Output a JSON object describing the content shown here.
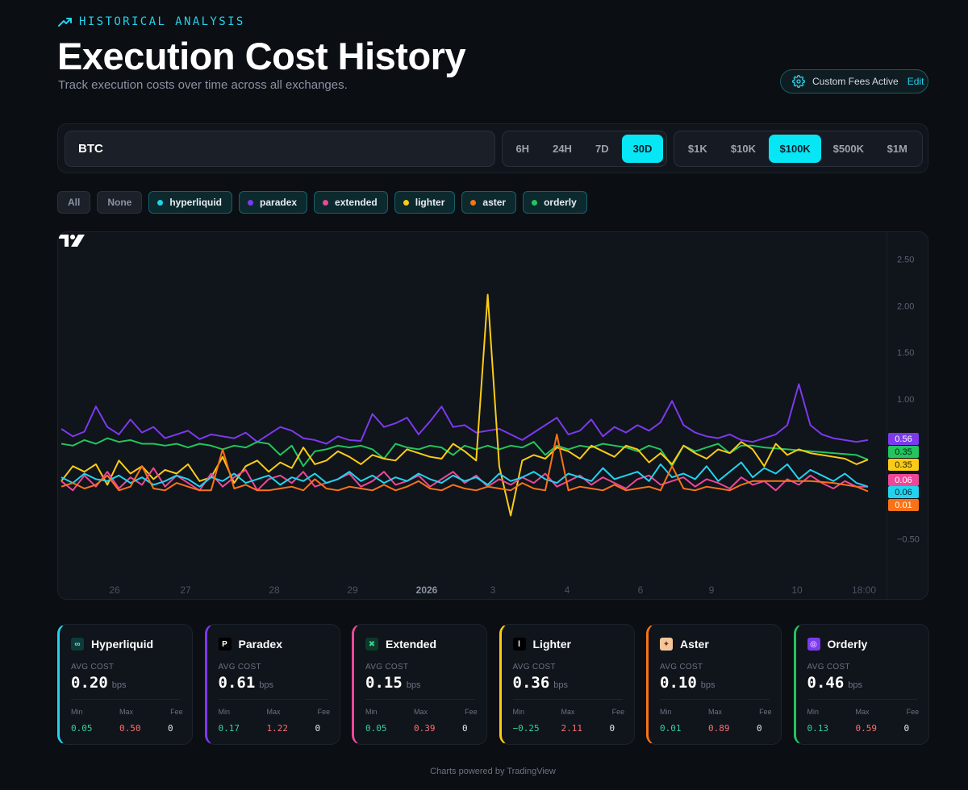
{
  "header": {
    "eyebrow": "HISTORICAL ANALYSIS",
    "title": "Execution Cost History",
    "subtitle": "Track execution costs over time across all exchanges.",
    "fees_label": "Custom Fees Active",
    "fees_edit": "Edit"
  },
  "controls": {
    "asset": "BTC",
    "time_ranges": [
      "6H",
      "24H",
      "7D",
      "30D"
    ],
    "time_active": "30D",
    "sizes": [
      "$1K",
      "$10K",
      "$100K",
      "$500K",
      "$1M"
    ],
    "size_active": "$100K"
  },
  "filters": {
    "all": "All",
    "none": "None",
    "exchanges": [
      {
        "name": "hyperliquid",
        "color": "#22d3ee"
      },
      {
        "name": "paradex",
        "color": "#7c3aed"
      },
      {
        "name": "extended",
        "color": "#ec4899"
      },
      {
        "name": "lighter",
        "color": "#facc15"
      },
      {
        "name": "aster",
        "color": "#f97316"
      },
      {
        "name": "orderly",
        "color": "#22c55e"
      }
    ]
  },
  "chart_data": {
    "type": "line",
    "unit": "bps",
    "ylim": [
      -0.6,
      2.6
    ],
    "y_ticks": [
      "2.50",
      "2.00",
      "1.50",
      "1.00",
      "−0.50"
    ],
    "x_ticks": [
      "26",
      "27",
      "28",
      "29",
      "2026",
      "3",
      "4",
      "6",
      "9",
      "10",
      "18:00"
    ],
    "last_labels": [
      {
        "value": "0.56",
        "color": "#7c3aed",
        "text_color": "#ffffff"
      },
      {
        "value": "0.35",
        "color": "#22c55e",
        "text_color": "#05210f"
      },
      {
        "value": "0.35",
        "color": "#facc15",
        "text_color": "#211a05"
      },
      {
        "value": "0.06",
        "color": "#ec4899",
        "text_color": "#ffffff"
      },
      {
        "value": "0.06",
        "color": "#22d3ee",
        "text_color": "#05212a"
      },
      {
        "value": "0.01",
        "color": "#f97316",
        "text_color": "#ffffff"
      }
    ],
    "series": [
      {
        "name": "paradex",
        "color": "#7c3aed",
        "values": [
          0.68,
          0.6,
          0.65,
          0.92,
          0.7,
          0.62,
          0.78,
          0.64,
          0.7,
          0.58,
          0.62,
          0.66,
          0.57,
          0.62,
          0.6,
          0.58,
          0.64,
          0.54,
          0.62,
          0.7,
          0.66,
          0.58,
          0.56,
          0.52,
          0.6,
          0.56,
          0.55,
          0.84,
          0.7,
          0.74,
          0.8,
          0.62,
          0.76,
          0.92,
          0.7,
          0.72,
          0.64,
          0.66,
          0.68,
          0.62,
          0.56,
          0.64,
          0.72,
          0.8,
          0.62,
          0.66,
          0.78,
          0.6,
          0.7,
          0.64,
          0.72,
          0.66,
          0.75,
          0.98,
          0.72,
          0.64,
          0.6,
          0.58,
          0.62,
          0.56,
          0.54,
          0.58,
          0.62,
          0.72,
          1.16,
          0.72,
          0.62,
          0.58,
          0.56,
          0.54,
          0.56
        ]
      },
      {
        "name": "orderly",
        "color": "#22c55e",
        "values": [
          0.52,
          0.5,
          0.56,
          0.52,
          0.58,
          0.54,
          0.56,
          0.52,
          0.52,
          0.5,
          0.52,
          0.48,
          0.52,
          0.5,
          0.46,
          0.5,
          0.48,
          0.54,
          0.52,
          0.4,
          0.5,
          0.28,
          0.44,
          0.46,
          0.5,
          0.48,
          0.5,
          0.46,
          0.36,
          0.52,
          0.48,
          0.46,
          0.5,
          0.48,
          0.4,
          0.5,
          0.46,
          0.5,
          0.46,
          0.5,
          0.48,
          0.54,
          0.4,
          0.5,
          0.46,
          0.5,
          0.48,
          0.52,
          0.5,
          0.48,
          0.44,
          0.5,
          0.46,
          0.28,
          0.5,
          0.44,
          0.48,
          0.52,
          0.42,
          0.5,
          0.5,
          0.48,
          0.47,
          0.46,
          0.45,
          0.44,
          0.43,
          0.42,
          0.41,
          0.4,
          0.35
        ]
      },
      {
        "name": "lighter",
        "color": "#facc15",
        "values": [
          0.12,
          0.28,
          0.22,
          0.3,
          0.08,
          0.34,
          0.2,
          0.28,
          0.14,
          0.24,
          0.2,
          0.3,
          0.12,
          0.16,
          0.38,
          0.1,
          0.28,
          0.34,
          0.22,
          0.32,
          0.26,
          0.48,
          0.3,
          0.34,
          0.44,
          0.38,
          0.3,
          0.4,
          0.36,
          0.34,
          0.46,
          0.42,
          0.38,
          0.36,
          0.52,
          0.44,
          0.34,
          2.12,
          0.28,
          -0.25,
          0.34,
          0.4,
          0.36,
          0.48,
          0.44,
          0.36,
          0.5,
          0.44,
          0.38,
          0.5,
          0.46,
          0.32,
          0.42,
          0.3,
          0.5,
          0.42,
          0.36,
          0.46,
          0.42,
          0.54,
          0.46,
          0.28,
          0.52,
          0.4,
          0.46,
          0.42,
          0.4,
          0.38,
          0.36,
          0.3,
          0.35
        ]
      },
      {
        "name": "extended",
        "color": "#ec4899",
        "values": [
          0.12,
          0.02,
          0.18,
          0.06,
          0.22,
          0.04,
          0.16,
          0.08,
          0.26,
          0.06,
          0.18,
          0.1,
          0.02,
          0.2,
          0.06,
          0.16,
          0.24,
          0.02,
          0.14,
          0.18,
          0.1,
          0.22,
          0.06,
          0.1,
          0.14,
          0.2,
          0.06,
          0.12,
          0.22,
          0.08,
          0.12,
          0.18,
          0.06,
          0.14,
          0.22,
          0.1,
          0.18,
          0.06,
          0.14,
          0.08,
          0.16,
          0.1,
          0.2,
          0.06,
          0.12,
          0.18,
          0.08,
          0.16,
          0.1,
          0.04,
          0.14,
          0.18,
          0.08,
          0.12,
          0.16,
          0.06,
          0.14,
          0.1,
          0.04,
          0.16,
          0.08,
          0.12,
          0.02,
          0.14,
          0.08,
          0.18,
          0.1,
          0.04,
          0.12,
          0.06,
          0.06
        ]
      },
      {
        "name": "hyperliquid",
        "color": "#22d3ee",
        "values": [
          0.16,
          0.1,
          0.2,
          0.14,
          0.12,
          0.18,
          0.1,
          0.16,
          0.08,
          0.12,
          0.18,
          0.14,
          0.06,
          0.16,
          0.12,
          0.2,
          0.1,
          0.14,
          0.18,
          0.08,
          0.16,
          0.12,
          0.2,
          0.1,
          0.14,
          0.22,
          0.12,
          0.18,
          0.1,
          0.16,
          0.12,
          0.2,
          0.14,
          0.1,
          0.18,
          0.12,
          0.16,
          0.08,
          0.2,
          0.12,
          0.16,
          0.22,
          0.14,
          0.1,
          0.2,
          0.16,
          0.12,
          0.26,
          0.14,
          0.18,
          0.22,
          0.12,
          0.3,
          0.16,
          0.2,
          0.14,
          0.28,
          0.12,
          0.22,
          0.32,
          0.16,
          0.26,
          0.2,
          0.3,
          0.14,
          0.24,
          0.18,
          0.12,
          0.2,
          0.1,
          0.06
        ]
      },
      {
        "name": "aster",
        "color": "#f97316",
        "values": [
          0.06,
          0.1,
          0.04,
          0.08,
          0.18,
          0.02,
          0.06,
          0.28,
          0.04,
          0.02,
          0.1,
          0.06,
          0.02,
          0.02,
          0.46,
          0.04,
          0.08,
          0.02,
          0.02,
          0.04,
          0.06,
          0.02,
          0.14,
          0.04,
          0.02,
          0.06,
          0.04,
          0.02,
          0.08,
          0.02,
          0.06,
          0.12,
          0.04,
          0.02,
          0.08,
          0.04,
          0.02,
          0.06,
          0.04,
          0.02,
          0.1,
          0.04,
          0.02,
          0.62,
          0.02,
          0.06,
          0.04,
          0.02,
          0.08,
          0.02,
          0.04,
          0.06,
          0.02,
          0.28,
          0.04,
          0.02,
          0.06,
          0.04,
          0.02,
          0.08,
          0.12,
          0.12,
          0.12,
          0.12,
          0.12,
          0.12,
          0.11,
          0.1,
          0.08,
          0.06,
          0.01
        ]
      }
    ]
  },
  "cards": [
    {
      "name": "Hyperliquid",
      "color": "#22d3ee",
      "logo_bg": "#0e3b3a",
      "logo_fg": "#5eead4",
      "logo_glyph": "∞",
      "avg_label": "AVG COST",
      "avg": "0.20",
      "unit": "bps",
      "min_label": "Min",
      "max_label": "Max",
      "fee_label": "Fee",
      "min": "0.05",
      "max": "0.50",
      "fee": "0"
    },
    {
      "name": "Paradex",
      "color": "#7c3aed",
      "logo_bg": "#000000",
      "logo_fg": "#ffffff",
      "logo_glyph": "P",
      "avg_label": "AVG COST",
      "avg": "0.61",
      "unit": "bps",
      "min_label": "Min",
      "max_label": "Max",
      "fee_label": "Fee",
      "min": "0.17",
      "max": "1.22",
      "fee": "0"
    },
    {
      "name": "Extended",
      "color": "#ec4899",
      "logo_bg": "#0b3a28",
      "logo_fg": "#34d399",
      "logo_glyph": "✖",
      "avg_label": "AVG COST",
      "avg": "0.15",
      "unit": "bps",
      "min_label": "Min",
      "max_label": "Max",
      "fee_label": "Fee",
      "min": "0.05",
      "max": "0.39",
      "fee": "0"
    },
    {
      "name": "Lighter",
      "color": "#facc15",
      "logo_bg": "#000000",
      "logo_fg": "#ffffff",
      "logo_glyph": "l",
      "avg_label": "AVG COST",
      "avg": "0.36",
      "unit": "bps",
      "min_label": "Min",
      "max_label": "Max",
      "fee_label": "Fee",
      "min": "−0.25",
      "max": "2.11",
      "fee": "0"
    },
    {
      "name": "Aster",
      "color": "#f97316",
      "logo_bg": "#f3c79b",
      "logo_fg": "#7c2d12",
      "logo_glyph": "✦",
      "avg_label": "AVG COST",
      "avg": "0.10",
      "unit": "bps",
      "min_label": "Min",
      "max_label": "Max",
      "fee_label": "Fee",
      "min": "0.01",
      "max": "0.89",
      "fee": "0"
    },
    {
      "name": "Orderly",
      "color": "#22c55e",
      "logo_bg": "#7c3aed",
      "logo_fg": "#ffffff",
      "logo_glyph": "◎",
      "avg_label": "AVG COST",
      "avg": "0.46",
      "unit": "bps",
      "min_label": "Min",
      "max_label": "Max",
      "fee_label": "Fee",
      "min": "0.13",
      "max": "0.59",
      "fee": "0"
    }
  ],
  "footer": "Charts powered by TradingView"
}
